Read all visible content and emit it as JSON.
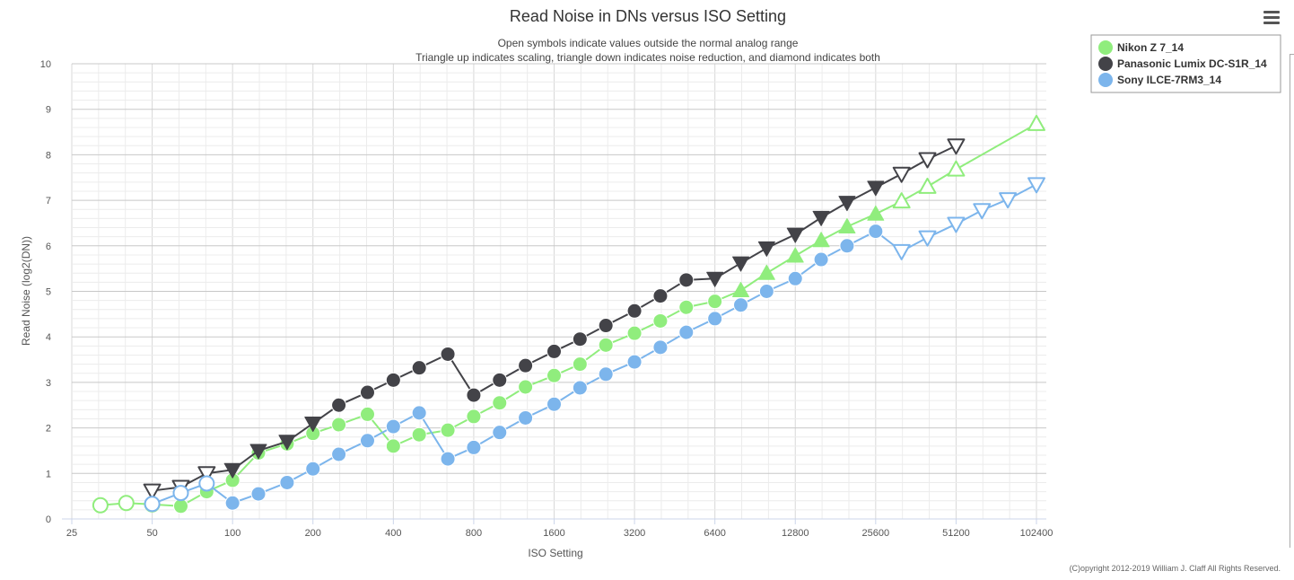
{
  "chart_data": {
    "type": "line",
    "title": "Read Noise in DNs versus ISO Setting",
    "subtitle": [
      "Open symbols indicate values outside the normal analog range",
      "Triangle up indicates scaling, triangle down indicates noise reduction, and diamond indicates both"
    ],
    "xlabel": "ISO Setting",
    "ylabel": "Read Noise (log2(DN))",
    "x_scale": "log2",
    "xlim": [
      25,
      102400
    ],
    "ylim": [
      0,
      10
    ],
    "x_ticks": [
      25,
      50,
      100,
      200,
      400,
      800,
      1600,
      3200,
      6400,
      12800,
      25600,
      51200,
      102400
    ],
    "y_ticks": [
      0,
      1,
      2,
      3,
      4,
      5,
      6,
      7,
      8,
      9,
      10
    ],
    "grid": true,
    "legend_position": "top-right",
    "credits": "(C)opyright 2012-2019 William J. Claff All Rights Reserved.",
    "series": [
      {
        "name": "Nikon Z 7_14",
        "color": "#90ed7d",
        "points": [
          {
            "x": 32,
            "y": 0.3,
            "m": "o",
            "open": true
          },
          {
            "x": 40,
            "y": 0.35,
            "m": "o",
            "open": true
          },
          {
            "x": 50,
            "y": 0.32,
            "m": "o",
            "open": true
          },
          {
            "x": 64,
            "y": 0.28,
            "m": "o",
            "open": false
          },
          {
            "x": 80,
            "y": 0.6,
            "m": "o",
            "open": false
          },
          {
            "x": 100,
            "y": 0.85,
            "m": "o",
            "open": false
          },
          {
            "x": 125,
            "y": 1.45,
            "m": "o",
            "open": false
          },
          {
            "x": 160,
            "y": 1.65,
            "m": "o",
            "open": false
          },
          {
            "x": 200,
            "y": 1.88,
            "m": "o",
            "open": false
          },
          {
            "x": 250,
            "y": 2.07,
            "m": "o",
            "open": false
          },
          {
            "x": 320,
            "y": 2.3,
            "m": "o",
            "open": false
          },
          {
            "x": 400,
            "y": 1.6,
            "m": "o",
            "open": false
          },
          {
            "x": 500,
            "y": 1.85,
            "m": "o",
            "open": false
          },
          {
            "x": 640,
            "y": 1.95,
            "m": "o",
            "open": false
          },
          {
            "x": 800,
            "y": 2.25,
            "m": "o",
            "open": false
          },
          {
            "x": 1000,
            "y": 2.55,
            "m": "o",
            "open": false
          },
          {
            "x": 1250,
            "y": 2.9,
            "m": "o",
            "open": false
          },
          {
            "x": 1600,
            "y": 3.15,
            "m": "o",
            "open": false
          },
          {
            "x": 2000,
            "y": 3.4,
            "m": "o",
            "open": false
          },
          {
            "x": 2500,
            "y": 3.82,
            "m": "o",
            "open": false
          },
          {
            "x": 3200,
            "y": 4.08,
            "m": "o",
            "open": false
          },
          {
            "x": 4000,
            "y": 4.35,
            "m": "o",
            "open": false
          },
          {
            "x": 5000,
            "y": 4.65,
            "m": "o",
            "open": false
          },
          {
            "x": 6400,
            "y": 4.78,
            "m": "o",
            "open": false
          },
          {
            "x": 8000,
            "y": 5.02,
            "m": "up",
            "open": false
          },
          {
            "x": 10000,
            "y": 5.4,
            "m": "up",
            "open": false
          },
          {
            "x": 12800,
            "y": 5.78,
            "m": "up",
            "open": false
          },
          {
            "x": 16000,
            "y": 6.12,
            "m": "up",
            "open": false
          },
          {
            "x": 20000,
            "y": 6.42,
            "m": "up",
            "open": false
          },
          {
            "x": 25600,
            "y": 6.7,
            "m": "up",
            "open": false
          },
          {
            "x": 32000,
            "y": 6.98,
            "m": "up",
            "open": true
          },
          {
            "x": 40000,
            "y": 7.3,
            "m": "up",
            "open": true
          },
          {
            "x": 51200,
            "y": 7.68,
            "m": "up",
            "open": true
          },
          {
            "x": 102400,
            "y": 8.68,
            "m": "up",
            "open": true
          }
        ]
      },
      {
        "name": "Panasonic Lumix DC-S1R_14",
        "color": "#434348",
        "points": [
          {
            "x": 50,
            "y": 0.62,
            "m": "down",
            "open": true
          },
          {
            "x": 64,
            "y": 0.7,
            "m": "down",
            "open": true
          },
          {
            "x": 80,
            "y": 1.0,
            "m": "down",
            "open": true
          },
          {
            "x": 100,
            "y": 1.08,
            "m": "down",
            "open": false
          },
          {
            "x": 125,
            "y": 1.5,
            "m": "down",
            "open": false
          },
          {
            "x": 160,
            "y": 1.7,
            "m": "down",
            "open": false
          },
          {
            "x": 200,
            "y": 2.1,
            "m": "down",
            "open": false
          },
          {
            "x": 250,
            "y": 2.5,
            "m": "o",
            "open": false
          },
          {
            "x": 320,
            "y": 2.78,
            "m": "o",
            "open": false
          },
          {
            "x": 400,
            "y": 3.05,
            "m": "o",
            "open": false
          },
          {
            "x": 500,
            "y": 3.32,
            "m": "o",
            "open": false
          },
          {
            "x": 640,
            "y": 3.62,
            "m": "o",
            "open": false
          },
          {
            "x": 800,
            "y": 2.72,
            "m": "o",
            "open": false
          },
          {
            "x": 1000,
            "y": 3.05,
            "m": "o",
            "open": false
          },
          {
            "x": 1250,
            "y": 3.37,
            "m": "o",
            "open": false
          },
          {
            "x": 1600,
            "y": 3.68,
            "m": "o",
            "open": false
          },
          {
            "x": 2000,
            "y": 3.95,
            "m": "o",
            "open": false
          },
          {
            "x": 2500,
            "y": 4.25,
            "m": "o",
            "open": false
          },
          {
            "x": 3200,
            "y": 4.57,
            "m": "o",
            "open": false
          },
          {
            "x": 4000,
            "y": 4.9,
            "m": "o",
            "open": false
          },
          {
            "x": 5000,
            "y": 5.25,
            "m": "o",
            "open": false
          },
          {
            "x": 6400,
            "y": 5.28,
            "m": "down",
            "open": false
          },
          {
            "x": 8000,
            "y": 5.62,
            "m": "down",
            "open": false
          },
          {
            "x": 10000,
            "y": 5.95,
            "m": "down",
            "open": false
          },
          {
            "x": 12800,
            "y": 6.25,
            "m": "down",
            "open": false
          },
          {
            "x": 16000,
            "y": 6.62,
            "m": "down",
            "open": false
          },
          {
            "x": 20000,
            "y": 6.95,
            "m": "down",
            "open": false
          },
          {
            "x": 25600,
            "y": 7.28,
            "m": "down",
            "open": false
          },
          {
            "x": 32000,
            "y": 7.58,
            "m": "down",
            "open": true
          },
          {
            "x": 40000,
            "y": 7.9,
            "m": "down",
            "open": true
          },
          {
            "x": 51200,
            "y": 8.2,
            "m": "down",
            "open": true
          }
        ]
      },
      {
        "name": "Sony ILCE-7RM3_14",
        "color": "#7cb5ec",
        "points": [
          {
            "x": 50,
            "y": 0.33,
            "m": "o",
            "open": true
          },
          {
            "x": 64,
            "y": 0.57,
            "m": "o",
            "open": true
          },
          {
            "x": 80,
            "y": 0.78,
            "m": "o",
            "open": true
          },
          {
            "x": 100,
            "y": 0.35,
            "m": "o",
            "open": false
          },
          {
            "x": 125,
            "y": 0.55,
            "m": "o",
            "open": false
          },
          {
            "x": 160,
            "y": 0.8,
            "m": "o",
            "open": false
          },
          {
            "x": 200,
            "y": 1.1,
            "m": "o",
            "open": false
          },
          {
            "x": 250,
            "y": 1.42,
            "m": "o",
            "open": false
          },
          {
            "x": 320,
            "y": 1.72,
            "m": "o",
            "open": false
          },
          {
            "x": 400,
            "y": 2.03,
            "m": "o",
            "open": false
          },
          {
            "x": 500,
            "y": 2.33,
            "m": "o",
            "open": false
          },
          {
            "x": 640,
            "y": 1.32,
            "m": "o",
            "open": false
          },
          {
            "x": 800,
            "y": 1.57,
            "m": "o",
            "open": false
          },
          {
            "x": 1000,
            "y": 1.9,
            "m": "o",
            "open": false
          },
          {
            "x": 1250,
            "y": 2.22,
            "m": "o",
            "open": false
          },
          {
            "x": 1600,
            "y": 2.52,
            "m": "o",
            "open": false
          },
          {
            "x": 2000,
            "y": 2.88,
            "m": "o",
            "open": false
          },
          {
            "x": 2500,
            "y": 3.18,
            "m": "o",
            "open": false
          },
          {
            "x": 3200,
            "y": 3.45,
            "m": "o",
            "open": false
          },
          {
            "x": 4000,
            "y": 3.77,
            "m": "o",
            "open": false
          },
          {
            "x": 5000,
            "y": 4.1,
            "m": "o",
            "open": false
          },
          {
            "x": 6400,
            "y": 4.4,
            "m": "o",
            "open": false
          },
          {
            "x": 8000,
            "y": 4.7,
            "m": "o",
            "open": false
          },
          {
            "x": 10000,
            "y": 5.0,
            "m": "o",
            "open": false
          },
          {
            "x": 12800,
            "y": 5.28,
            "m": "o",
            "open": false
          },
          {
            "x": 16000,
            "y": 5.7,
            "m": "o",
            "open": false
          },
          {
            "x": 20000,
            "y": 6.0,
            "m": "o",
            "open": false
          },
          {
            "x": 25600,
            "y": 6.32,
            "m": "o",
            "open": false
          },
          {
            "x": 32000,
            "y": 5.88,
            "m": "down",
            "open": true
          },
          {
            "x": 40000,
            "y": 6.18,
            "m": "down",
            "open": true
          },
          {
            "x": 51200,
            "y": 6.48,
            "m": "down",
            "open": true
          },
          {
            "x": 64000,
            "y": 6.78,
            "m": "down",
            "open": true
          },
          {
            "x": 80000,
            "y": 7.02,
            "m": "down",
            "open": true
          },
          {
            "x": 102400,
            "y": 7.35,
            "m": "down",
            "open": true
          }
        ]
      }
    ]
  }
}
